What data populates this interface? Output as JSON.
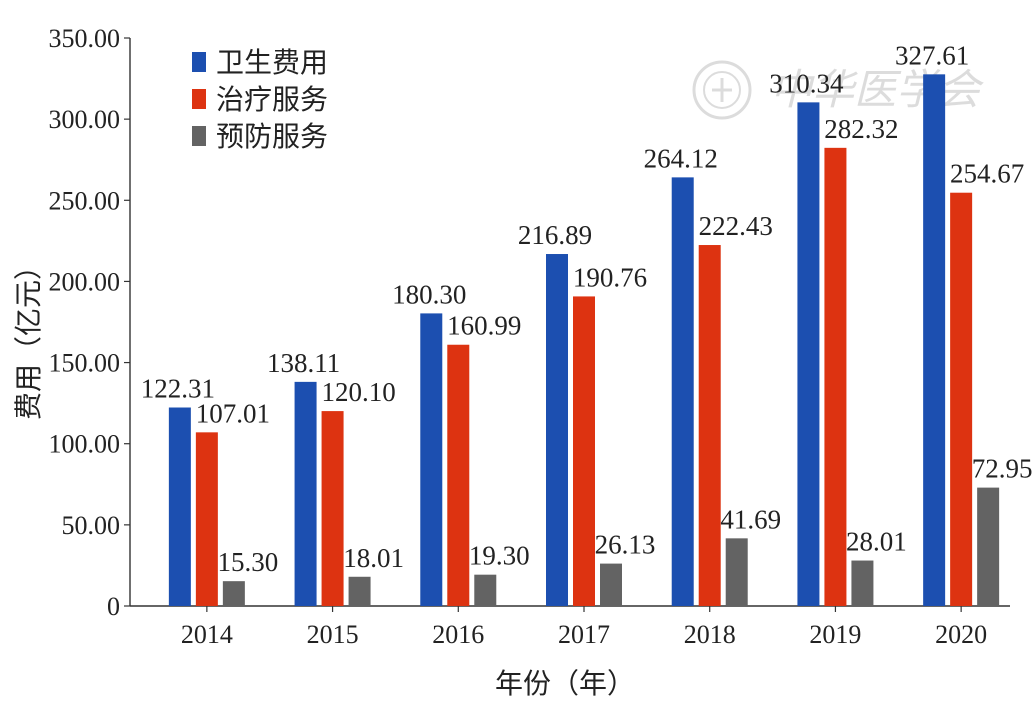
{
  "chart_data": {
    "type": "bar",
    "xlabel": "年份（年）",
    "ylabel": "费用（亿元）",
    "ylim": [
      0,
      350
    ],
    "yticks": [
      "0",
      "50.00",
      "100.00",
      "150.00",
      "200.00",
      "250.00",
      "300.00",
      "350.00"
    ],
    "grid": false,
    "legend_position": "top-left",
    "categories": [
      "2014",
      "2015",
      "2016",
      "2017",
      "2018",
      "2019",
      "2020"
    ],
    "series": [
      {
        "name": "卫生费用",
        "color": "#1c4fb0",
        "values": [
          122.31,
          138.11,
          180.3,
          216.89,
          264.12,
          310.34,
          327.61
        ],
        "labels": [
          "122.31",
          "138.11",
          "180.30",
          "216.89",
          "264.12",
          "310.34",
          "327.61"
        ]
      },
      {
        "name": "治疗服务",
        "color": "#dd3311",
        "values": [
          107.01,
          120.1,
          160.99,
          190.76,
          222.43,
          282.32,
          254.67
        ],
        "labels": [
          "107.01",
          "120.10",
          "160.99",
          "190.76",
          "222.43",
          "282.32",
          "254.67"
        ]
      },
      {
        "name": "预防服务",
        "color": "#636363",
        "values": [
          15.3,
          18.01,
          19.3,
          26.13,
          41.69,
          28.01,
          72.95
        ],
        "labels": [
          "15.30",
          "18.01",
          "19.30",
          "26.13",
          "41.69",
          "28.01",
          "72.95"
        ]
      }
    ]
  },
  "watermark": {
    "text": "中华医学会",
    "icon": "society-seal-icon"
  }
}
